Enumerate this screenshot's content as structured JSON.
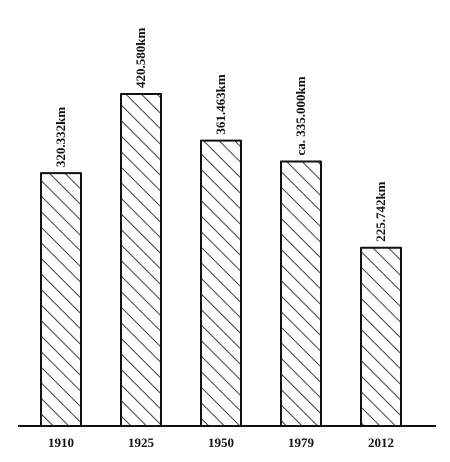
{
  "chart_data": {
    "type": "bar",
    "title": "",
    "xlabel": "",
    "ylabel": "",
    "categories": [
      "1910",
      "1925",
      "1950",
      "1979",
      "2012"
    ],
    "values": [
      320.332,
      420.58,
      361.463,
      335.0,
      225.742
    ],
    "value_labels": [
      "320.332km",
      "420.580km",
      "361.463km",
      "ca. 335.000km",
      "225.742km"
    ],
    "unit": "km",
    "ylim": [
      0,
      450
    ],
    "grid": false,
    "legend": "none",
    "bar_fill": "diagonal-hatch",
    "colors": {
      "ink": "#111111",
      "background": "#ffffff"
    }
  }
}
